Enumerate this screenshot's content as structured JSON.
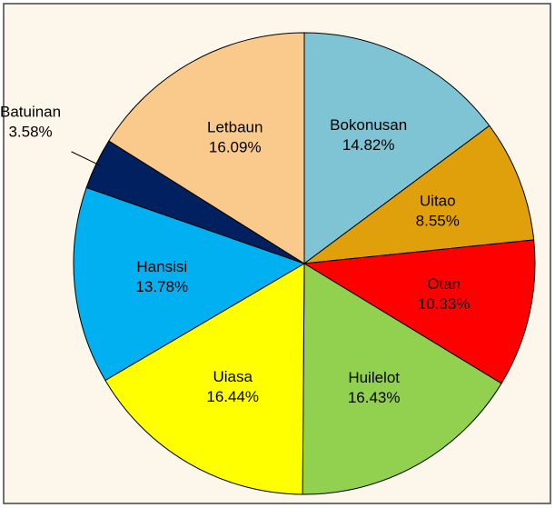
{
  "chart_data": {
    "type": "pie",
    "categories": [
      "Bokonusan",
      "Uitao",
      "Otan",
      "Huilelot",
      "Uiasa",
      "Hansisi",
      "Batuinan",
      "Letbaun"
    ],
    "values": [
      14.82,
      8.55,
      10.33,
      16.43,
      16.44,
      13.78,
      3.58,
      16.09
    ],
    "value_labels": [
      "14.82%",
      "8.55%",
      "10.33%",
      "16.43%",
      "16.44%",
      "13.78%",
      "3.58%",
      "16.09%"
    ],
    "colors": [
      "#7fc4d4",
      "#e0a00c",
      "#ff0000",
      "#92d050",
      "#ffff00",
      "#00b0f0",
      "#002060",
      "#fac98c"
    ]
  }
}
